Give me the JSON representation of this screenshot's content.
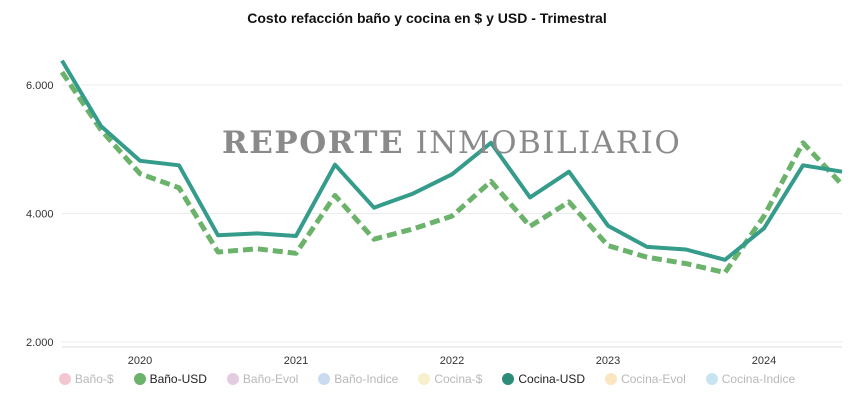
{
  "watermark": {
    "bold": "REPORTE",
    "light": "INMOBILIARIO"
  },
  "chart_data": {
    "type": "line",
    "title": "Costo refacción baño y cocina en $ y USD - Trimestral",
    "xlabel": "",
    "ylabel": "",
    "x_ticks": [
      "2020",
      "2021",
      "2022",
      "2023",
      "2024"
    ],
    "y_ticks": [
      "2.000",
      "4.000",
      "6.000"
    ],
    "ylim": [
      2000,
      6700
    ],
    "grid": true,
    "legend_position": "bottom",
    "x": [
      "2019-Q3",
      "2019-Q4",
      "2020-Q1",
      "2020-Q2",
      "2020-Q3",
      "2020-Q4",
      "2021-Q1",
      "2021-Q2",
      "2021-Q3",
      "2021-Q4",
      "2022-Q1",
      "2022-Q2",
      "2022-Q3",
      "2022-Q4",
      "2023-Q1",
      "2023-Q2",
      "2023-Q3",
      "2023-Q4",
      "2024-Q1",
      "2024-Q2",
      "2024-Q3"
    ],
    "series": [
      {
        "name": "Baño-USD",
        "color": "#6bb26b",
        "dashed": true,
        "values": [
          6200,
          5300,
          4620,
          4400,
          3400,
          3450,
          3380,
          4280,
          3600,
          3760,
          3960,
          4500,
          3800,
          4180,
          3500,
          3320,
          3220,
          3080,
          3960,
          5100,
          4450
        ]
      },
      {
        "name": "Cocina-USD",
        "color": "#359b8a",
        "dashed": false,
        "values": [
          6380,
          5360,
          4820,
          4750,
          3660,
          3690,
          3650,
          4760,
          4090,
          4310,
          4610,
          5100,
          4250,
          4650,
          3810,
          3480,
          3440,
          3280,
          3770,
          4750,
          4650
        ]
      }
    ],
    "legend": [
      {
        "label": "Baño-$",
        "color": "#f2c7cf"
      },
      {
        "label": "Baño-USD",
        "color": "#6bb26b"
      },
      {
        "label": "Baño-Evol",
        "color": "#e3cce0"
      },
      {
        "label": "Baño-Indice",
        "color": "#c9dcef"
      },
      {
        "label": "Cocina-$",
        "color": "#f7f0cc"
      },
      {
        "label": "Cocina-USD",
        "color": "#2b8c7a"
      },
      {
        "label": "Cocina-Evol",
        "color": "#fbe6c2"
      },
      {
        "label": "Cocina-Indice",
        "color": "#c8e4f2"
      }
    ],
    "legend_active": [
      "Baño-USD",
      "Cocina-USD"
    ]
  }
}
